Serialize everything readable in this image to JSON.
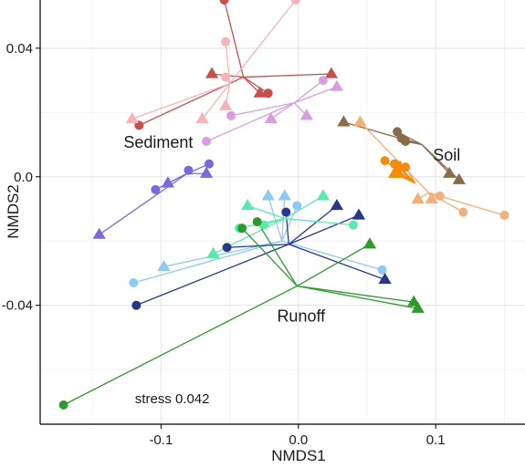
{
  "chart_data": {
    "type": "scatter",
    "xlabel": "NMDS1",
    "ylabel": "NMDS2",
    "xlim": [
      -0.188,
      0.165
    ],
    "ylim": [
      -0.077,
      0.055
    ],
    "x_ticks": [
      -0.1,
      0.0,
      0.1
    ],
    "x_tick_labels": [
      "-0.1",
      "0.0",
      "0.1"
    ],
    "y_ticks": [
      -0.04,
      0.0,
      0.04
    ],
    "y_tick_labels": [
      "-0.04",
      "0.0",
      "0.04"
    ],
    "grid": true,
    "annotations": [
      {
        "text": "Sediment",
        "x": -0.102,
        "y": 0.009,
        "size": "large"
      },
      {
        "text": "Soil",
        "x": 0.108,
        "y": 0.005,
        "size": "large"
      },
      {
        "text": "Runoff",
        "x": 0.002,
        "y": -0.045,
        "size": "large"
      },
      {
        "text": "stress 0.042",
        "x": -0.119,
        "y": -0.0705,
        "size": "small"
      }
    ],
    "groups": [
      {
        "color": "#c94f4f",
        "centroid": [
          -0.04,
          0.031
        ],
        "points": [
          {
            "x": -0.054,
            "y": 0.055,
            "shape": "circle"
          },
          {
            "x": -0.022,
            "y": 0.026,
            "shape": "circle"
          },
          {
            "x": -0.116,
            "y": 0.016,
            "shape": "circle"
          },
          {
            "x": -0.063,
            "y": 0.032,
            "shape": "triangle"
          },
          {
            "x": 0.024,
            "y": 0.032,
            "shape": "triangle"
          },
          {
            "x": -0.028,
            "y": 0.026,
            "shape": "triangle"
          }
        ]
      },
      {
        "color": "#f5b5b8",
        "centroid": [
          -0.05,
          0.029
        ],
        "points": [
          {
            "x": -0.002,
            "y": 0.055,
            "shape": "circle"
          },
          {
            "x": -0.053,
            "y": 0.042,
            "shape": "circle"
          },
          {
            "x": -0.053,
            "y": 0.031,
            "shape": "circle"
          },
          {
            "x": -0.121,
            "y": 0.018,
            "shape": "triangle"
          },
          {
            "x": -0.07,
            "y": 0.018,
            "shape": "triangle"
          },
          {
            "x": -0.053,
            "y": 0.022,
            "shape": "triangle"
          }
        ]
      },
      {
        "color": "#d89ee0",
        "centroid": [
          -0.003,
          0.023
        ],
        "points": [
          {
            "x": -0.067,
            "y": 0.011,
            "shape": "circle"
          },
          {
            "x": -0.049,
            "y": 0.019,
            "shape": "circle"
          },
          {
            "x": 0.018,
            "y": 0.03,
            "shape": "circle"
          },
          {
            "x": 0.028,
            "y": 0.028,
            "shape": "triangle"
          },
          {
            "x": -0.02,
            "y": 0.018,
            "shape": "triangle"
          },
          {
            "x": 0.006,
            "y": 0.019,
            "shape": "triangle"
          }
        ]
      },
      {
        "color": "#7b68d9",
        "centroid": [
          -0.081,
          0.001
        ],
        "points": [
          {
            "x": -0.104,
            "y": -0.004,
            "shape": "circle"
          },
          {
            "x": -0.08,
            "y": 0.002,
            "shape": "circle"
          },
          {
            "x": -0.065,
            "y": 0.004,
            "shape": "circle"
          },
          {
            "x": -0.145,
            "y": -0.018,
            "shape": "triangle"
          },
          {
            "x": -0.095,
            "y": -0.002,
            "shape": "triangle"
          },
          {
            "x": -0.067,
            "y": 0.001,
            "shape": "triangle"
          }
        ]
      },
      {
        "color": "#8a6b4a",
        "centroid": [
          0.09,
          0.01
        ],
        "points": [
          {
            "x": 0.072,
            "y": 0.014,
            "shape": "circle"
          },
          {
            "x": 0.078,
            "y": 0.011,
            "shape": "circle"
          },
          {
            "x": 0.075,
            "y": 0.012,
            "shape": "circle"
          },
          {
            "x": 0.033,
            "y": 0.017,
            "shape": "triangle"
          },
          {
            "x": 0.11,
            "y": 0.001,
            "shape": "triangle"
          },
          {
            "x": 0.117,
            "y": -0.001,
            "shape": "triangle"
          }
        ]
      },
      {
        "color": "#f48c0a",
        "centroid": [
          0.085,
          -0.002
        ],
        "points": [
          {
            "x": 0.063,
            "y": 0.005,
            "shape": "circle"
          },
          {
            "x": 0.078,
            "y": 0.003,
            "shape": "circle"
          },
          {
            "x": 0.07,
            "y": 0.004,
            "shape": "circle"
          },
          {
            "x": 0.073,
            "y": 0.001,
            "shape": "triangle"
          },
          {
            "x": 0.07,
            "y": 0.001,
            "shape": "triangle"
          },
          {
            "x": 0.074,
            "y": 0.003,
            "shape": "triangle"
          }
        ]
      },
      {
        "color": "#f4b07a",
        "centroid": [
          0.095,
          -0.005
        ],
        "points": [
          {
            "x": 0.103,
            "y": -0.006,
            "shape": "circle"
          },
          {
            "x": 0.12,
            "y": -0.011,
            "shape": "circle"
          },
          {
            "x": 0.15,
            "y": -0.012,
            "shape": "circle"
          },
          {
            "x": 0.045,
            "y": 0.017,
            "shape": "triangle"
          },
          {
            "x": 0.087,
            "y": -0.007,
            "shape": "triangle"
          },
          {
            "x": 0.097,
            "y": -0.007,
            "shape": "triangle"
          }
        ]
      },
      {
        "color": "#8fcaf0",
        "centroid": [
          -0.012,
          -0.02
        ],
        "points": [
          {
            "x": -0.12,
            "y": -0.033,
            "shape": "circle"
          },
          {
            "x": -0.001,
            "y": -0.009,
            "shape": "circle"
          },
          {
            "x": 0.061,
            "y": -0.029,
            "shape": "circle"
          },
          {
            "x": -0.022,
            "y": -0.006,
            "shape": "triangle"
          },
          {
            "x": -0.01,
            "y": -0.006,
            "shape": "triangle"
          },
          {
            "x": -0.098,
            "y": -0.028,
            "shape": "triangle"
          }
        ]
      },
      {
        "color": "#26388a",
        "centroid": [
          -0.007,
          -0.021
        ],
        "points": [
          {
            "x": -0.118,
            "y": -0.04,
            "shape": "circle"
          },
          {
            "x": -0.052,
            "y": -0.022,
            "shape": "circle"
          },
          {
            "x": -0.009,
            "y": -0.011,
            "shape": "circle"
          },
          {
            "x": 0.028,
            "y": -0.009,
            "shape": "triangle"
          },
          {
            "x": 0.044,
            "y": -0.012,
            "shape": "triangle"
          },
          {
            "x": 0.063,
            "y": -0.032,
            "shape": "triangle"
          }
        ]
      },
      {
        "color": "#5be9b0",
        "centroid": [
          -0.01,
          -0.013
        ],
        "points": [
          {
            "x": -0.043,
            "y": -0.016,
            "shape": "circle"
          },
          {
            "x": -0.025,
            "y": -0.015,
            "shape": "circle"
          },
          {
            "x": 0.04,
            "y": -0.015,
            "shape": "circle"
          },
          {
            "x": -0.037,
            "y": -0.009,
            "shape": "triangle"
          },
          {
            "x": 0.018,
            "y": -0.006,
            "shape": "triangle"
          },
          {
            "x": -0.062,
            "y": -0.024,
            "shape": "triangle"
          }
        ]
      },
      {
        "color": "#2e9a2e",
        "centroid": [
          -0.001,
          -0.034
        ],
        "points": [
          {
            "x": -0.171,
            "y": -0.071,
            "shape": "circle"
          },
          {
            "x": -0.03,
            "y": -0.014,
            "shape": "circle"
          },
          {
            "x": -0.041,
            "y": -0.016,
            "shape": "circle"
          },
          {
            "x": 0.052,
            "y": -0.021,
            "shape": "triangle"
          },
          {
            "x": 0.084,
            "y": -0.039,
            "shape": "triangle"
          },
          {
            "x": 0.087,
            "y": -0.041,
            "shape": "triangle"
          }
        ]
      }
    ]
  }
}
